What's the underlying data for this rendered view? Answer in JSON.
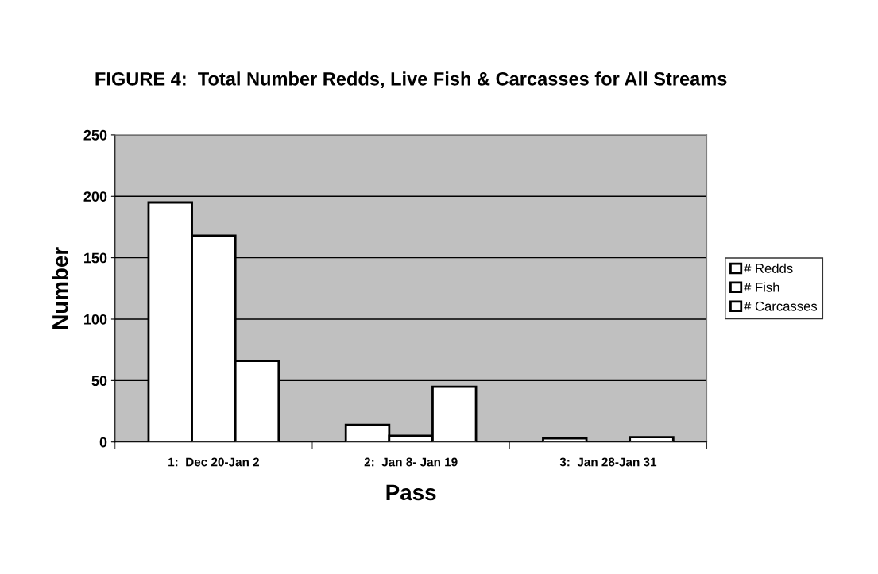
{
  "chart_data": {
    "type": "bar",
    "title": "FIGURE 4:  Total Number Redds, Live Fish & Carcasses for All Streams",
    "xlabel": "Pass",
    "ylabel": "Number",
    "categories": [
      "1:  Dec 20-Jan 2",
      "2:  Jan 8- Jan 19",
      "3:  Jan 28-Jan 31"
    ],
    "series": [
      {
        "name": "# Redds",
        "color": "#ffffff",
        "values": [
          195,
          14,
          3
        ]
      },
      {
        "name": "# Fish",
        "color": "#ffffff",
        "values": [
          168,
          5,
          0
        ]
      },
      {
        "name": "# Carcasses",
        "color": "#ffffff",
        "values": [
          66,
          45,
          4
        ]
      }
    ],
    "ylim": [
      0,
      250
    ],
    "yticks": [
      0,
      50,
      100,
      150,
      200,
      250
    ],
    "grid": "y",
    "legend": "right"
  }
}
